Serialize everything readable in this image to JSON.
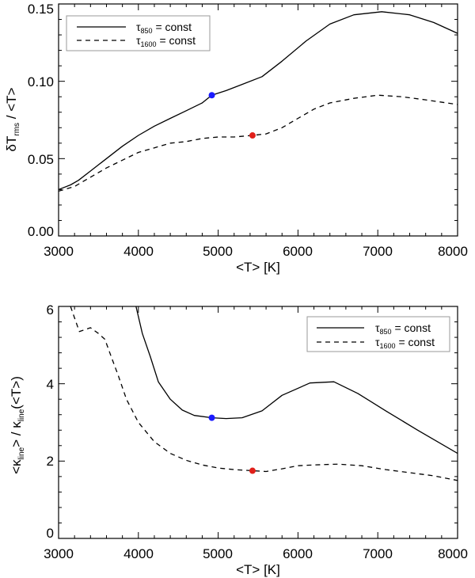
{
  "chart_data": [
    {
      "type": "line",
      "title": "",
      "xlabel": "<T> [K]",
      "ylabel": {
        "main": "δT",
        "sub": "rms",
        "rest": " / <T>"
      },
      "xlim": [
        3000,
        8000
      ],
      "ylim": [
        0,
        0.15
      ],
      "xticks": [
        3000,
        4000,
        5000,
        6000,
        7000,
        8000
      ],
      "yticks": [
        0.0,
        0.05,
        0.1,
        0.15
      ],
      "ytick_labels": [
        "0.00",
        "0.05",
        "0.10",
        "0.15"
      ],
      "legend_position": "top-left",
      "series": [
        {
          "name": "τ850 = const",
          "legend": {
            "sym": "τ",
            "sub": "850",
            "rest": " = const"
          },
          "style": "solid",
          "x": [
            3000,
            3150,
            3250,
            3400,
            3600,
            3800,
            4000,
            4200,
            4400,
            4600,
            4800,
            4920,
            5100,
            5300,
            5550,
            5800,
            6100,
            6400,
            6700,
            7050,
            7400,
            7700,
            8000
          ],
          "y": [
            0.03,
            0.033,
            0.036,
            0.042,
            0.05,
            0.058,
            0.065,
            0.071,
            0.076,
            0.081,
            0.086,
            0.091,
            0.094,
            0.098,
            0.103,
            0.113,
            0.126,
            0.137,
            0.143,
            0.145,
            0.143,
            0.138,
            0.131
          ],
          "marker": {
            "x": 4920,
            "y": 0.091,
            "color": "#1a1aff"
          }
        },
        {
          "name": "τ1600 = const",
          "legend": {
            "sym": "τ",
            "sub": "1600",
            "rest": " = const"
          },
          "style": "dashed",
          "x": [
            3000,
            3200,
            3400,
            3600,
            3800,
            4000,
            4200,
            4400,
            4600,
            4800,
            5000,
            5200,
            5430,
            5600,
            5800,
            6000,
            6200,
            6400,
            6700,
            7000,
            7300,
            7600,
            8000
          ],
          "y": [
            0.029,
            0.032,
            0.038,
            0.044,
            0.049,
            0.054,
            0.057,
            0.06,
            0.061,
            0.063,
            0.064,
            0.064,
            0.065,
            0.066,
            0.07,
            0.076,
            0.082,
            0.086,
            0.089,
            0.091,
            0.09,
            0.088,
            0.085
          ],
          "marker": {
            "x": 5430,
            "y": 0.065,
            "color": "#e0201a"
          }
        }
      ]
    },
    {
      "type": "line",
      "title": "",
      "xlabel": "<T> [K]",
      "ylabel": {
        "p1": "<κ",
        "s1": "line",
        "p2": "> / κ",
        "s2": "line",
        "p3": "(<T>)"
      },
      "xlim": [
        3000,
        8000
      ],
      "ylim": [
        0,
        6
      ],
      "xticks": [
        3000,
        4000,
        5000,
        6000,
        7000,
        8000
      ],
      "yticks": [
        0,
        2,
        4,
        6
      ],
      "ytick_labels": [
        "0",
        "2",
        "4",
        "6"
      ],
      "legend_position": "top-right",
      "series": [
        {
          "name": "τ850 = const",
          "legend": {
            "sym": "τ",
            "sub": "850",
            "rest": " = const"
          },
          "style": "solid",
          "x": [
            3970,
            4050,
            4150,
            4250,
            4400,
            4550,
            4700,
            4920,
            5100,
            5300,
            5550,
            5800,
            6150,
            6450,
            6750,
            7100,
            7500,
            8000
          ],
          "y": [
            6.0,
            5.3,
            4.7,
            4.05,
            3.6,
            3.32,
            3.18,
            3.12,
            3.1,
            3.12,
            3.3,
            3.7,
            4.02,
            4.05,
            3.75,
            3.3,
            2.8,
            2.2
          ],
          "marker": {
            "x": 4920,
            "y": 3.12,
            "color": "#1a1aff"
          }
        },
        {
          "name": "τ1600 = const",
          "legend": {
            "sym": "τ",
            "sub": "1600",
            "rest": " = const"
          },
          "style": "dashed",
          "x": [
            3150,
            3200,
            3260,
            3330,
            3400,
            3500,
            3580,
            3660,
            3750,
            3850,
            4000,
            4200,
            4400,
            4600,
            4800,
            5000,
            5200,
            5430,
            5600,
            5800,
            6000,
            6200,
            6500,
            6800,
            7100,
            7400,
            7700,
            8000
          ],
          "y": [
            6.0,
            5.7,
            5.35,
            5.4,
            5.45,
            5.3,
            5.15,
            4.7,
            4.2,
            3.6,
            3.0,
            2.5,
            2.2,
            2.02,
            1.9,
            1.82,
            1.78,
            1.75,
            1.73,
            1.8,
            1.88,
            1.9,
            1.92,
            1.88,
            1.78,
            1.7,
            1.62,
            1.5
          ],
          "marker": {
            "x": 5430,
            "y": 1.75,
            "color": "#e0201a"
          }
        }
      ]
    }
  ]
}
